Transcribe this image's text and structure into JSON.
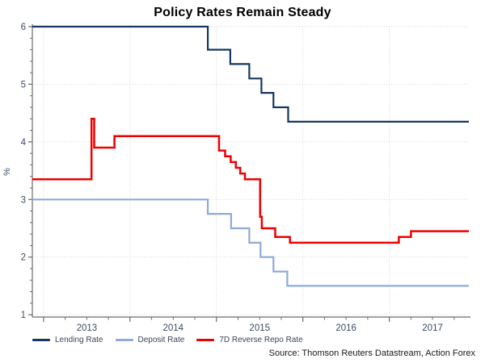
{
  "title": "Policy Rates Remain Steady",
  "source": "Source: Thomson Reuters Datastream, Action Forex",
  "colors": {
    "lending": "#17375E",
    "deposit": "#8EAADB",
    "repo": "#EE0000",
    "axis": "#6b6b6b",
    "tick_label": "#3E4C63",
    "grid": "#d6d6d6",
    "title_text": "#000000",
    "legend_text": "#3A4558",
    "source_text": "#1a1a1a"
  },
  "chart_data": {
    "type": "line",
    "title": "Policy Rates Remain Steady",
    "xlabel": "",
    "ylabel": "%",
    "x_range": [
      2012.87,
      2017.92
    ],
    "ylim": [
      0.96,
      6.0
    ],
    "y_ticks": [
      1,
      2,
      3,
      4,
      5,
      6
    ],
    "y_minor_step": 0.2,
    "x_year_gridlines": [
      2013,
      2014,
      2015,
      2016,
      2017
    ],
    "x_year_labels": [
      2013,
      2014,
      2015,
      2016,
      2017
    ],
    "x_minor_step": 0.25,
    "grid": "dotted horizontal and vertical",
    "legend_position": "bottom-left",
    "series": [
      {
        "name": "Lending Rate",
        "color": "#17375E",
        "width": 2.2,
        "step_points": [
          [
            2012.87,
            6.0
          ],
          [
            2014.9,
            5.6
          ],
          [
            2015.16,
            5.35
          ],
          [
            2015.38,
            5.1
          ],
          [
            2015.52,
            4.85
          ],
          [
            2015.66,
            4.6
          ],
          [
            2015.83,
            4.35
          ]
        ]
      },
      {
        "name": "Deposit Rate",
        "color": "#8EAADB",
        "width": 2.2,
        "step_points": [
          [
            2012.87,
            3.0
          ],
          [
            2014.9,
            2.75
          ],
          [
            2015.17,
            2.5
          ],
          [
            2015.38,
            2.25
          ],
          [
            2015.51,
            2.0
          ],
          [
            2015.66,
            1.75
          ],
          [
            2015.82,
            1.5
          ]
        ]
      },
      {
        "name": "7D Reverse Repo Rate",
        "color": "#EE0000",
        "width": 2.5,
        "step_points": [
          [
            2012.87,
            3.35
          ],
          [
            2013.555,
            4.4
          ],
          [
            2013.585,
            3.9
          ],
          [
            2013.82,
            4.1
          ],
          [
            2015.03,
            3.85
          ],
          [
            2015.1,
            3.75
          ],
          [
            2015.165,
            3.65
          ],
          [
            2015.225,
            3.55
          ],
          [
            2015.275,
            3.45
          ],
          [
            2015.33,
            3.35
          ],
          [
            2015.505,
            2.7
          ],
          [
            2015.525,
            2.5
          ],
          [
            2015.68,
            2.35
          ],
          [
            2015.85,
            2.25
          ],
          [
            2017.11,
            2.35
          ],
          [
            2017.25,
            2.45
          ]
        ]
      }
    ]
  }
}
